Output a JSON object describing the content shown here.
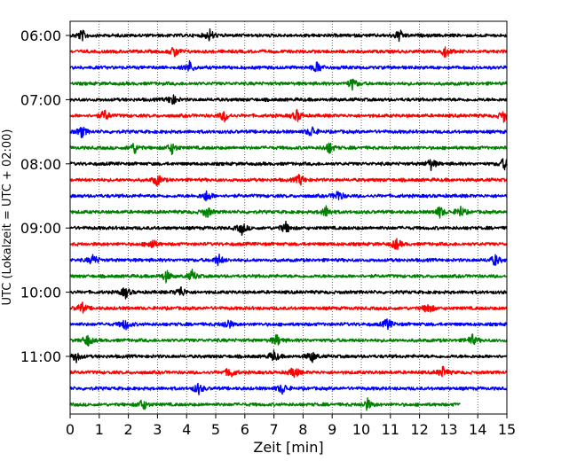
{
  "chart_data": {
    "type": "line",
    "subtype": "helicorder seismogram",
    "xlabel": "Zeit  [min]",
    "ylabel": "UTC (Lokalzeit = UTC + 02:00)",
    "xlim": [
      0,
      15
    ],
    "xticks": [
      "0",
      "1",
      "2",
      "3",
      "4",
      "5",
      "6",
      "7",
      "8",
      "9",
      "10",
      "11",
      "12",
      "13",
      "14",
      "15"
    ],
    "yticks": [
      "06:00",
      "07:00",
      "08:00",
      "09:00",
      "10:00",
      "11:00"
    ],
    "grid": "vertical dotted",
    "trace_colors": [
      "#000000",
      "#ff0000",
      "#0000ff",
      "#008000"
    ],
    "trace_minutes_per_line": 15,
    "traces": [
      {
        "start": "06:00",
        "color": "#000000",
        "events_min": [
          0.4,
          4.8,
          11.3
        ]
      },
      {
        "start": "06:15",
        "color": "#ff0000",
        "events_min": [
          3.6,
          12.9
        ]
      },
      {
        "start": "06:30",
        "color": "#0000ff",
        "events_min": [
          4.1,
          8.5
        ]
      },
      {
        "start": "06:45",
        "color": "#008000",
        "events_min": [
          9.7
        ]
      },
      {
        "start": "07:00",
        "color": "#000000",
        "events_min": [
          3.5
        ]
      },
      {
        "start": "07:15",
        "color": "#ff0000",
        "events_min": [
          1.2,
          5.3,
          7.8,
          14.9
        ]
      },
      {
        "start": "07:30",
        "color": "#0000ff",
        "events_min": [
          0.4,
          8.3
        ]
      },
      {
        "start": "07:45",
        "color": "#008000",
        "events_min": [
          2.2,
          3.5,
          8.9
        ]
      },
      {
        "start": "08:00",
        "color": "#000000",
        "events_min": [
          12.4,
          14.9
        ]
      },
      {
        "start": "08:15",
        "color": "#ff0000",
        "events_min": [
          3.0,
          7.9
        ]
      },
      {
        "start": "08:30",
        "color": "#0000ff",
        "events_min": [
          4.7,
          9.2
        ]
      },
      {
        "start": "08:45",
        "color": "#008000",
        "events_min": [
          4.7,
          8.8,
          12.7,
          13.4
        ]
      },
      {
        "start": "09:00",
        "color": "#000000",
        "events_min": [
          5.9,
          7.4
        ]
      },
      {
        "start": "09:15",
        "color": "#ff0000",
        "events_min": [
          2.8,
          11.2
        ]
      },
      {
        "start": "09:30",
        "color": "#0000ff",
        "events_min": [
          0.8,
          5.1,
          14.6
        ]
      },
      {
        "start": "09:45",
        "color": "#008000",
        "events_min": [
          3.3,
          4.2
        ]
      },
      {
        "start": "10:00",
        "color": "#000000",
        "events_min": [
          1.9,
          3.8
        ]
      },
      {
        "start": "10:15",
        "color": "#ff0000",
        "events_min": [
          0.4,
          12.3
        ]
      },
      {
        "start": "10:30",
        "color": "#0000ff",
        "events_min": [
          1.9,
          5.4,
          10.9
        ]
      },
      {
        "start": "10:45",
        "color": "#008000",
        "events_min": [
          0.6,
          7.1,
          13.8
        ]
      },
      {
        "start": "11:00",
        "color": "#000000",
        "events_min": [
          0.2,
          7.0,
          8.3
        ]
      },
      {
        "start": "11:15",
        "color": "#ff0000",
        "events_min": [
          5.5,
          7.7,
          12.8
        ]
      },
      {
        "start": "11:30",
        "color": "#0000ff",
        "events_min": [
          4.4,
          7.3
        ]
      },
      {
        "start": "11:45",
        "color": "#008000",
        "events_min": [
          2.5,
          10.2
        ],
        "end_min": 13.4
      }
    ]
  }
}
